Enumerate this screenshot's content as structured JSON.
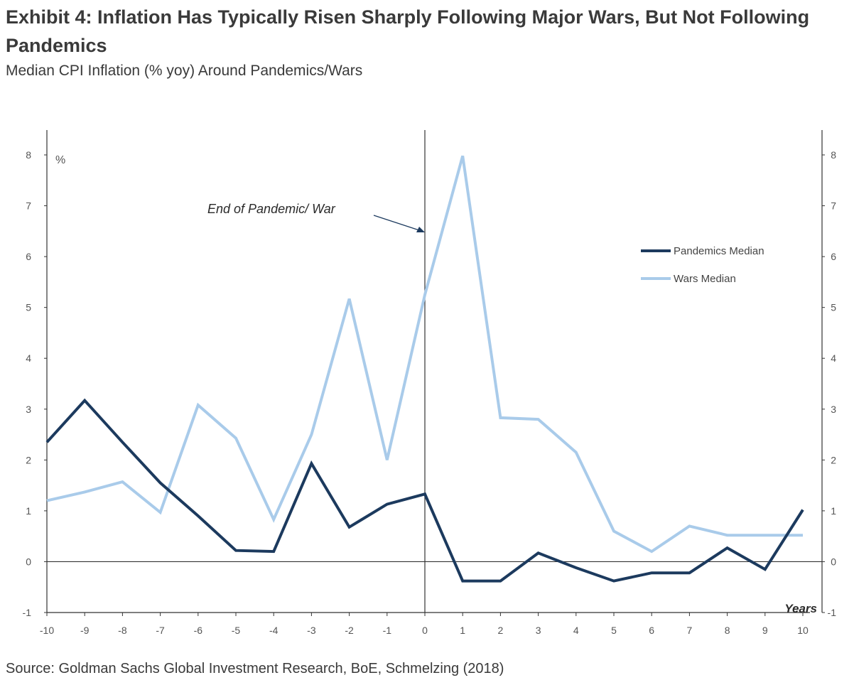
{
  "header": {
    "title": "Exhibit 4: Inflation Has Typically Risen Sharply Following Major Wars, But Not Following Pandemics",
    "subtitle": "Median CPI Inflation (% yoy) Around Pandemics/Wars"
  },
  "footer": {
    "source": "Source: Goldman Sachs Global Investment Research, BoE, Schmelzing (2018)"
  },
  "chart_data": {
    "type": "line",
    "title": "Exhibit 4: Inflation Has Typically Risen Sharply Following Major Wars, But Not Following Pandemics",
    "subtitle": "Median CPI Inflation (% yoy) Around Pandemics/Wars",
    "xlabel": "Years",
    "ylabel": "%",
    "annotation": "End of Pandemic/ War",
    "x": [
      -10,
      -9,
      -8,
      -7,
      -6,
      -5,
      -4,
      -3,
      -2,
      -1,
      0,
      1,
      2,
      3,
      4,
      5,
      6,
      7,
      8,
      9,
      10
    ],
    "xlim": [
      -10,
      10
    ],
    "ylim": [
      -1,
      8
    ],
    "yticks": [
      -1,
      0,
      1,
      2,
      3,
      4,
      5,
      6,
      7,
      8
    ],
    "grid": false,
    "legend_position": "right",
    "series": [
      {
        "name": "Pandemics Median",
        "color": "#1c3a5e",
        "values": [
          2.35,
          3.17,
          2.35,
          1.55,
          0.9,
          0.22,
          0.2,
          1.93,
          0.68,
          1.13,
          1.33,
          -0.38,
          -0.38,
          0.17,
          -0.12,
          -0.38,
          -0.22,
          -0.22,
          0.27,
          -0.15,
          1.02
        ]
      },
      {
        "name": "Wars Median",
        "color": "#a9cbea",
        "values": [
          1.2,
          1.37,
          1.57,
          0.97,
          3.08,
          2.43,
          0.83,
          2.5,
          5.17,
          2.0,
          5.25,
          7.98,
          2.83,
          2.8,
          2.15,
          0.6,
          0.2,
          0.7,
          0.52,
          0.52,
          0.52
        ]
      }
    ]
  }
}
